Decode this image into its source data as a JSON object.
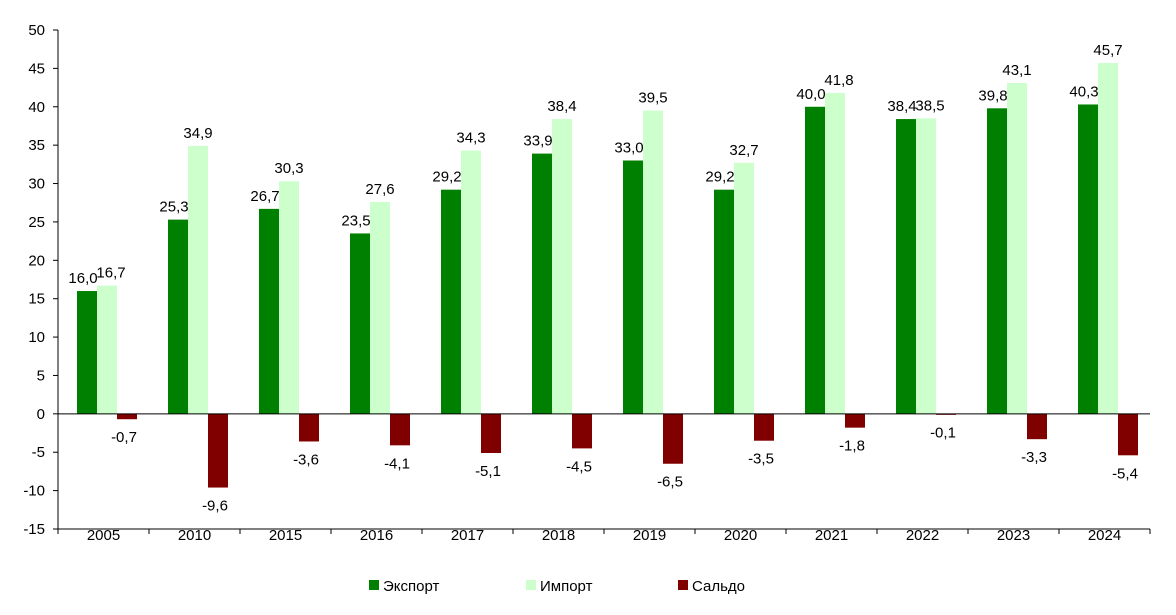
{
  "chart_data": {
    "type": "bar",
    "categories": [
      "2005",
      "2010",
      "2015",
      "2016",
      "2017",
      "2018",
      "2019",
      "2020",
      "2021",
      "2022",
      "2023",
      "2024"
    ],
    "series": [
      {
        "name": "Экспорт",
        "color": "#008000",
        "values": [
          16.0,
          25.3,
          26.7,
          23.5,
          29.2,
          33.9,
          33.0,
          29.2,
          40.0,
          38.4,
          39.8,
          40.3
        ],
        "labels": [
          "16,0",
          "25,3",
          "26,7",
          "23,5",
          "29,2",
          "33,9",
          "33,0",
          "29,2",
          "40,0",
          "38,4",
          "39,8",
          "40,3"
        ]
      },
      {
        "name": "Импорт",
        "color": "#ccffcc",
        "values": [
          16.7,
          34.9,
          30.3,
          27.6,
          34.3,
          38.4,
          39.5,
          32.7,
          41.8,
          38.5,
          43.1,
          45.7
        ],
        "labels": [
          "16,7",
          "34,9",
          "30,3",
          "27,6",
          "34,3",
          "38,4",
          "39,5",
          "32,7",
          "41,8",
          "38,5",
          "43,1",
          "45,7"
        ]
      },
      {
        "name": "Сальдо",
        "color": "#800000",
        "values": [
          -0.7,
          -9.6,
          -3.6,
          -4.1,
          -5.1,
          -4.5,
          -6.5,
          -3.5,
          -1.8,
          -0.1,
          -3.3,
          -5.4
        ],
        "labels": [
          "-0,7",
          "-9,6",
          "-3,6",
          "-4,1",
          "-5,1",
          "-4,5",
          "-6,5",
          "-3,5",
          "-1,8",
          "-0,1",
          "-3,3",
          "-5,4"
        ]
      }
    ],
    "ylim": [
      -15,
      50
    ],
    "yticks": [
      -15,
      -10,
      -5,
      0,
      5,
      10,
      15,
      20,
      25,
      30,
      35,
      40,
      45,
      50
    ],
    "grid": false,
    "legend": "bottom",
    "title": "",
    "xlabel": "",
    "ylabel": ""
  }
}
